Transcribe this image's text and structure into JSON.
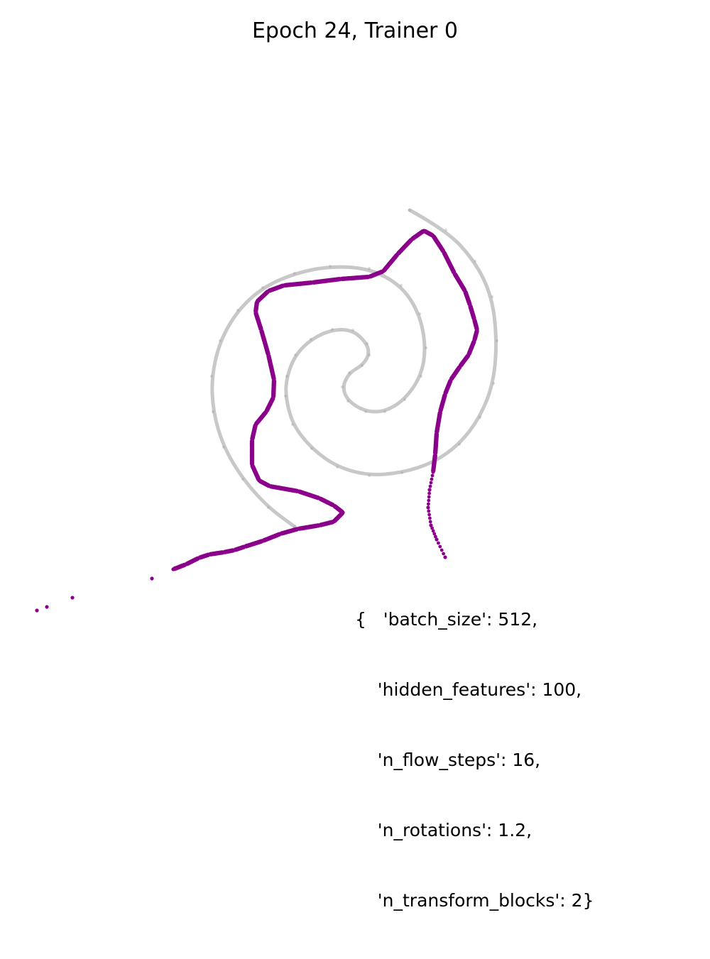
{
  "chart_data": {
    "type": "scatter",
    "title": "Epoch 24, Trainer 0",
    "xlabel": "",
    "ylabel": "",
    "axes_visible": false,
    "grid": false,
    "series": [
      {
        "role": "target",
        "color": "#9a9a9a",
        "points": [
          [
            0.577,
            0.296
          ],
          [
            0.628,
            0.324
          ],
          [
            0.669,
            0.368
          ],
          [
            0.693,
            0.418
          ],
          [
            0.7,
            0.48
          ],
          [
            0.695,
            0.54
          ],
          [
            0.676,
            0.588
          ],
          [
            0.647,
            0.626
          ],
          [
            0.61,
            0.652
          ],
          [
            0.566,
            0.666
          ],
          [
            0.52,
            0.67
          ],
          [
            0.475,
            0.658
          ],
          [
            0.439,
            0.632
          ],
          [
            0.412,
            0.598
          ],
          [
            0.402,
            0.558
          ],
          [
            0.404,
            0.53
          ],
          [
            0.416,
            0.5
          ],
          [
            0.438,
            0.478
          ],
          [
            0.468,
            0.464
          ],
          [
            0.497,
            0.465
          ],
          [
            0.517,
            0.484
          ],
          [
            0.52,
            0.5
          ],
          [
            0.51,
            0.515
          ],
          [
            0.492,
            0.525
          ],
          [
            0.482,
            0.545
          ],
          [
            0.49,
            0.565
          ],
          [
            0.515,
            0.58
          ],
          [
            0.542,
            0.58
          ],
          [
            0.57,
            0.563
          ],
          [
            0.593,
            0.53
          ],
          [
            0.6,
            0.49
          ],
          [
            0.591,
            0.442
          ],
          [
            0.565,
            0.402
          ],
          [
            0.52,
            0.378
          ],
          [
            0.465,
            0.375
          ],
          [
            0.415,
            0.385
          ],
          [
            0.37,
            0.405
          ],
          [
            0.335,
            0.437
          ],
          [
            0.31,
            0.48
          ],
          [
            0.298,
            0.53
          ],
          [
            0.3,
            0.58
          ],
          [
            0.315,
            0.63
          ],
          [
            0.342,
            0.675
          ],
          [
            0.378,
            0.715
          ],
          [
            0.415,
            0.742
          ]
        ]
      },
      {
        "role": "samples",
        "color": "#8b008b",
        "points": [
          [
            0.052,
            0.86
          ],
          [
            0.066,
            0.855
          ],
          [
            0.102,
            0.842
          ],
          [
            0.214,
            0.815
          ],
          [
            0.244,
            0.802
          ],
          [
            0.262,
            0.795
          ],
          [
            0.28,
            0.786
          ],
          [
            0.295,
            0.781
          ],
          [
            0.315,
            0.778
          ],
          [
            0.33,
            0.775
          ],
          [
            0.345,
            0.77
          ],
          [
            0.37,
            0.762
          ],
          [
            0.395,
            0.752
          ],
          [
            0.42,
            0.745
          ],
          [
            0.45,
            0.74
          ],
          [
            0.47,
            0.735
          ],
          [
            0.483,
            0.722
          ],
          [
            0.47,
            0.712
          ],
          [
            0.45,
            0.702
          ],
          [
            0.42,
            0.692
          ],
          [
            0.38,
            0.685
          ],
          [
            0.365,
            0.677
          ],
          [
            0.355,
            0.655
          ],
          [
            0.355,
            0.62
          ],
          [
            0.36,
            0.598
          ],
          [
            0.375,
            0.58
          ],
          [
            0.385,
            0.56
          ],
          [
            0.386,
            0.535
          ],
          [
            0.378,
            0.5
          ],
          [
            0.368,
            0.465
          ],
          [
            0.36,
            0.44
          ],
          [
            0.362,
            0.425
          ],
          [
            0.378,
            0.41
          ],
          [
            0.4,
            0.402
          ],
          [
            0.44,
            0.398
          ],
          [
            0.48,
            0.393
          ],
          [
            0.52,
            0.39
          ],
          [
            0.54,
            0.382
          ],
          [
            0.56,
            0.358
          ],
          [
            0.58,
            0.337
          ],
          [
            0.597,
            0.325
          ],
          [
            0.61,
            0.332
          ],
          [
            0.625,
            0.355
          ],
          [
            0.64,
            0.385
          ],
          [
            0.655,
            0.41
          ],
          [
            0.662,
            0.43
          ],
          [
            0.668,
            0.45
          ],
          [
            0.672,
            0.465
          ],
          [
            0.668,
            0.48
          ],
          [
            0.66,
            0.5
          ],
          [
            0.648,
            0.516
          ],
          [
            0.635,
            0.535
          ],
          [
            0.627,
            0.555
          ],
          [
            0.62,
            0.58
          ],
          [
            0.615,
            0.61
          ],
          [
            0.613,
            0.64
          ],
          [
            0.61,
            0.665
          ],
          [
            0.605,
            0.69
          ],
          [
            0.603,
            0.715
          ],
          [
            0.607,
            0.74
          ],
          [
            0.615,
            0.76
          ],
          [
            0.627,
            0.785
          ]
        ]
      }
    ]
  },
  "config_text": [
    "{   'batch_size': 512,",
    "    'hidden_features': 100,",
    "    'n_flow_steps': 16,",
    "    'n_rotations': 1.2,",
    "    'n_transform_blocks': 2}"
  ]
}
